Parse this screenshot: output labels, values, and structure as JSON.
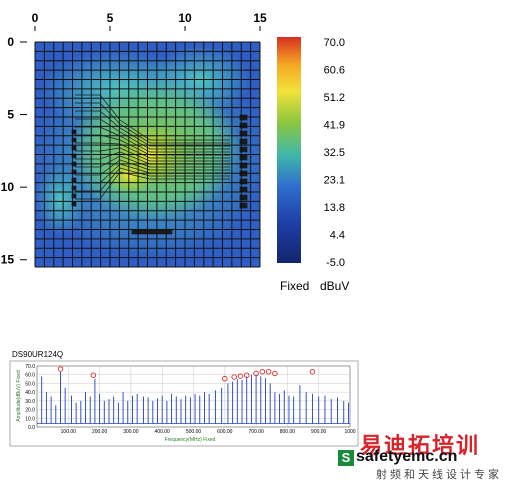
{
  "chart_data": [
    {
      "type": "heatmap",
      "x_ticks": [
        "0",
        "5",
        "10",
        "15"
      ],
      "y_ticks": [
        "0",
        "5",
        "10",
        "15"
      ],
      "xlim": [
        0,
        15
      ],
      "ylim": [
        0,
        15.5
      ],
      "grid": true,
      "colorbar": {
        "ticks": [
          "70.0",
          "60.6",
          "51.2",
          "41.9",
          "32.5",
          "23.1",
          "13.8",
          "4.4",
          "-5.0"
        ],
        "range": [
          -5.0,
          70.0
        ],
        "labels": [
          "Fixed",
          "dBuV"
        ],
        "colors": [
          "#d7301f",
          "#f5a623",
          "#f2e23a",
          "#8cc63f",
          "#3fb8a8",
          "#2f6fce",
          "#1e3fa8",
          "#14246e"
        ]
      }
    },
    {
      "type": "line",
      "title": "DS90UR124Q",
      "xlabel": "Frequency(MHz) Fixed",
      "ylabel": "Amplitude(dBuV) Fixed",
      "x_ticks": [
        "100.00",
        "200.00",
        "300.00",
        "400.00",
        "500.00",
        "600.00",
        "700.00",
        "800.00",
        "900.00",
        "1000"
      ],
      "y_ticks": [
        "70.0",
        "60.0",
        "50.0",
        "40.0",
        "30.0",
        "20.0",
        "10.0",
        "0.0"
      ],
      "xlim": [
        0,
        1000
      ],
      "ylim": [
        0,
        70
      ],
      "grid": true,
      "series": [
        {
          "color": "#1f3fbf",
          "x": [
            15,
            30,
            45,
            60,
            75,
            90,
            110,
            125,
            140,
            155,
            170,
            185,
            200,
            215,
            230,
            245,
            260,
            275,
            290,
            305,
            320,
            340,
            355,
            370,
            385,
            400,
            415,
            430,
            445,
            460,
            475,
            490,
            505,
            520,
            535,
            550,
            570,
            590,
            610,
            625,
            640,
            655,
            670,
            685,
            700,
            715,
            730,
            745,
            760,
            775,
            790,
            805,
            820,
            840,
            860,
            880,
            900,
            920,
            940,
            960,
            980,
            995
          ],
          "y": [
            58,
            40,
            35,
            25,
            63,
            45,
            36,
            28,
            30,
            40,
            35,
            55,
            38,
            30,
            32,
            35,
            28,
            40,
            30,
            36,
            38,
            35,
            34,
            30,
            33,
            36,
            30,
            38,
            35,
            32,
            36,
            34,
            38,
            36,
            40,
            38,
            42,
            45,
            50,
            52,
            55,
            54,
            58,
            60,
            60,
            58,
            56,
            50,
            40,
            38,
            42,
            36,
            35,
            48,
            40,
            38,
            35,
            36,
            32,
            34,
            30,
            28
          ]
        }
      ],
      "markers": {
        "color": "#d23030",
        "x": [
          75,
          180,
          600,
          630,
          650,
          670,
          700,
          720,
          740,
          760,
          880
        ],
        "y": [
          63,
          56,
          52,
          54,
          55,
          56,
          58,
          60,
          60,
          58,
          60
        ]
      }
    }
  ],
  "watermark": {
    "cn_big": "易迪拓培训",
    "s_letter": "S",
    "site": "safetyemc.cn",
    "cn_sub": "射频和天线设计专家"
  }
}
